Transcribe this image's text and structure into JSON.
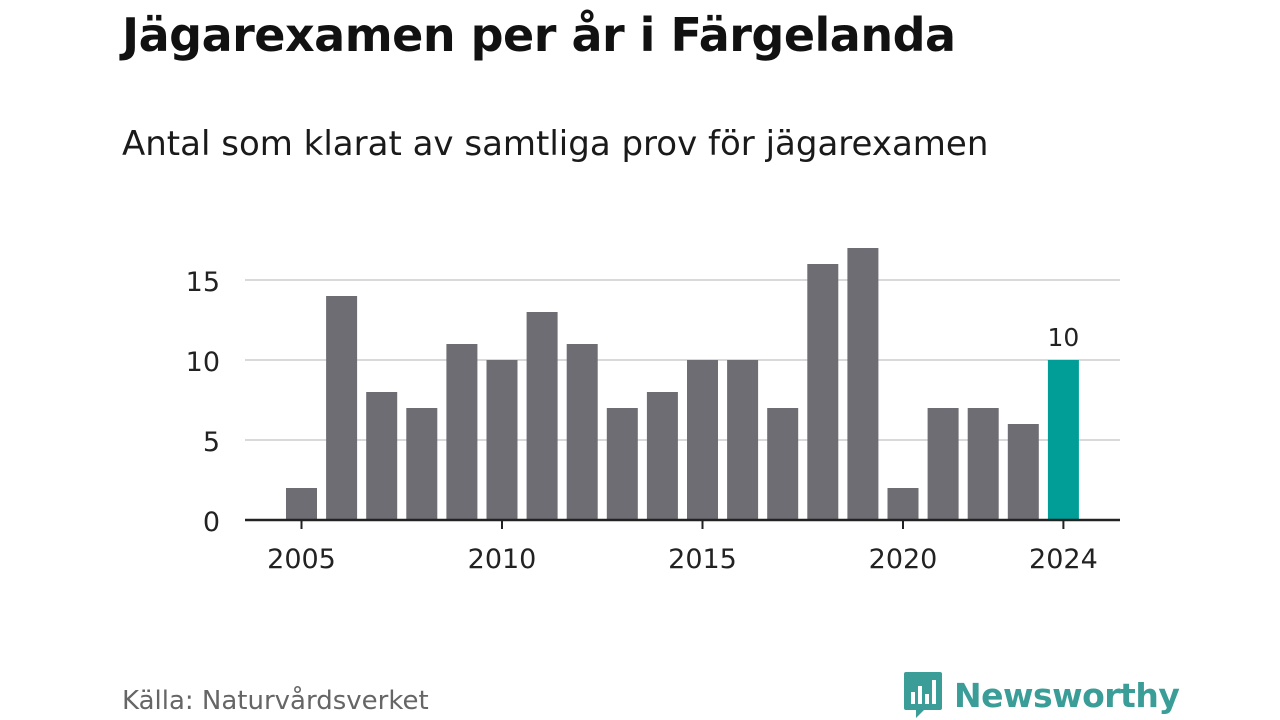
{
  "title": "Jägarexamen per år i Färgelanda",
  "subtitle": "Antal som klarat av samtliga prov för jägarexamen",
  "source": "Källa: Naturvårdsverket",
  "brand": "Newsworthy",
  "colors": {
    "bar": "#6e6d73",
    "highlight": "#009e96",
    "grid": "#d9d9d9",
    "axis": "#222222",
    "brand": "#3a9d97"
  },
  "chart_data": {
    "type": "bar",
    "title": "Jägarexamen per år i Färgelanda",
    "subtitle": "Antal som klarat av samtliga prov för jägarexamen",
    "x": [
      2005,
      2006,
      2007,
      2008,
      2009,
      2010,
      2011,
      2012,
      2013,
      2014,
      2015,
      2016,
      2017,
      2018,
      2019,
      2020,
      2021,
      2022,
      2023,
      2024
    ],
    "values": [
      2,
      14,
      8,
      7,
      11,
      10,
      13,
      11,
      7,
      8,
      10,
      10,
      7,
      16,
      17,
      2,
      7,
      7,
      6,
      10
    ],
    "highlight_x": 2024,
    "highlight_label": "10",
    "xticks": [
      "2005",
      "2010",
      "2015",
      "2020",
      "2024"
    ],
    "yticks": [
      "0",
      "5",
      "10",
      "15"
    ],
    "ylim": [
      0,
      17
    ],
    "grid": true,
    "legend": "none"
  }
}
